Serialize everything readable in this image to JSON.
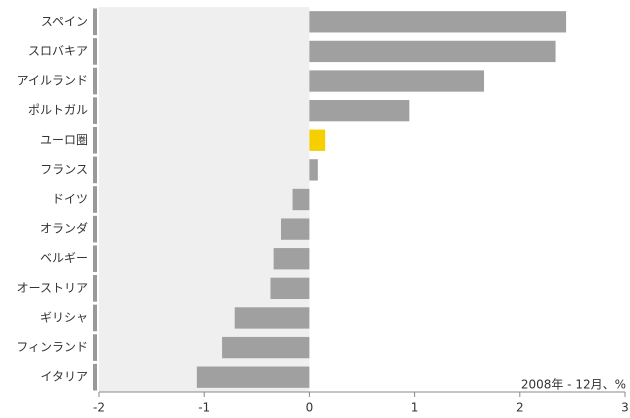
{
  "chart_data": {
    "type": "barh",
    "categories": [
      "スペイン",
      "スロバキア",
      "アイルランド",
      "ポルトガル",
      "ユーロ圏",
      "フランス",
      "ドイツ",
      "オランダ",
      "ベルギー",
      "オーストリア",
      "ギリシャ",
      "フィンランド",
      "イタリア"
    ],
    "values": [
      2.44,
      2.34,
      1.66,
      0.95,
      0.15,
      0.08,
      -0.16,
      -0.27,
      -0.34,
      -0.37,
      -0.71,
      -0.83,
      -1.07
    ],
    "colors": [
      "#a0a0a0",
      "#a0a0a0",
      "#a0a0a0",
      "#a0a0a0",
      "#f5cf00",
      "#a0a0a0",
      "#a0a0a0",
      "#a0a0a0",
      "#a0a0a0",
      "#a0a0a0",
      "#a0a0a0",
      "#a0a0a0",
      "#a0a0a0"
    ],
    "xlim": [
      -2,
      3
    ],
    "xticks": [
      -2,
      -1,
      0,
      1,
      2,
      3
    ],
    "annotation": "2008年 - 12月、%"
  }
}
